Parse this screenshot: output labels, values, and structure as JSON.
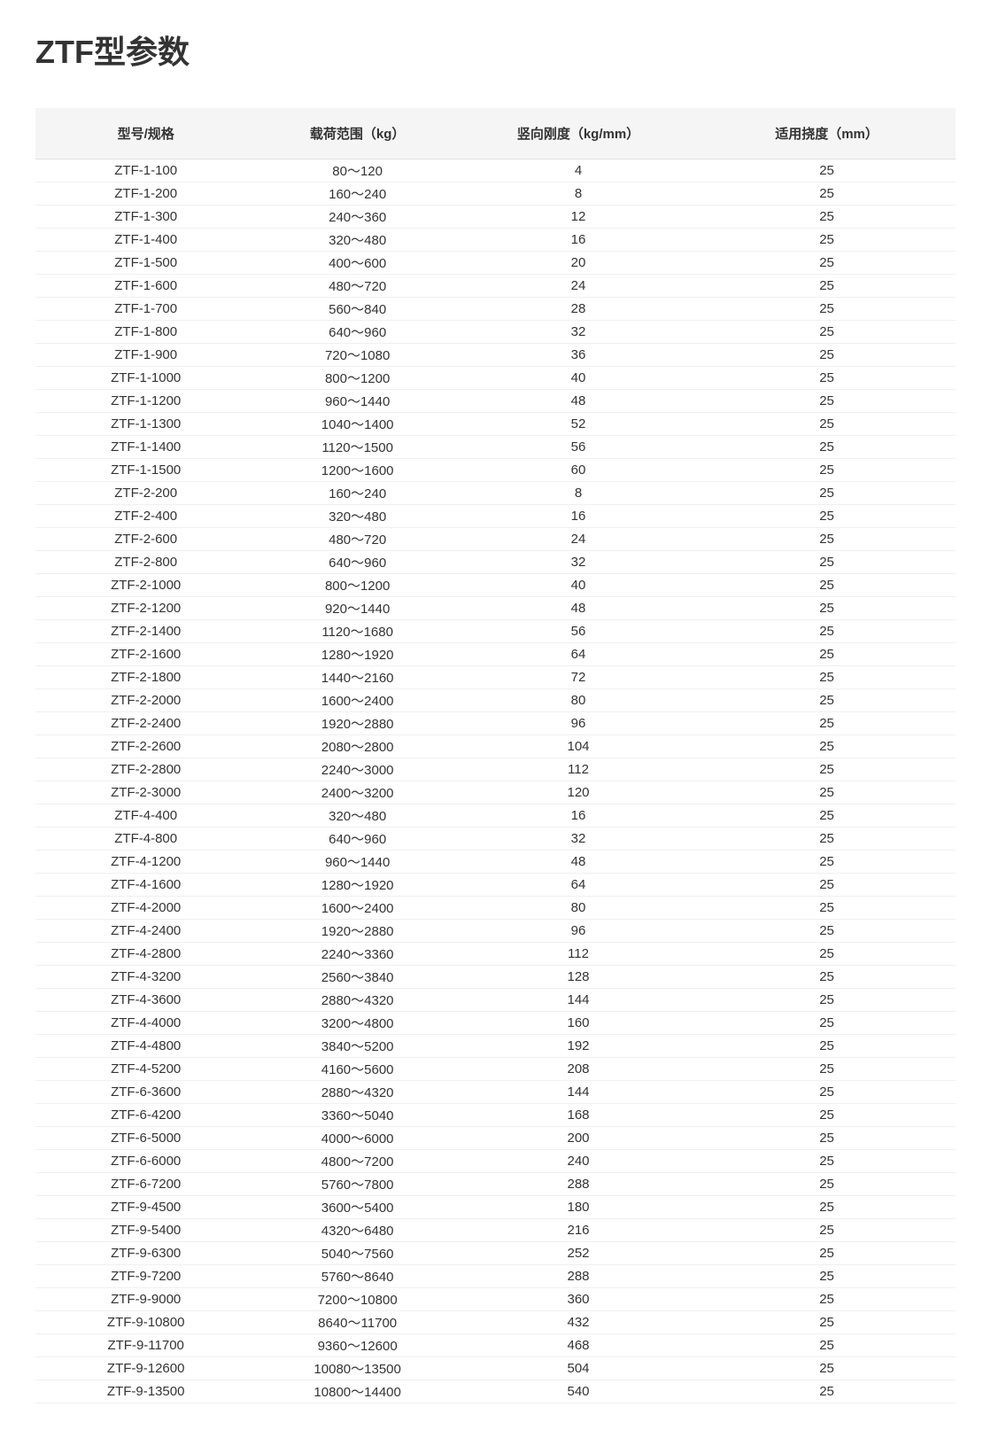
{
  "title": "ZTF型参数",
  "table": {
    "columns": [
      "型号/规格",
      "载荷范围（kg）",
      "竖向刚度（kg/mm）",
      "适用挠度（mm）"
    ],
    "rows": [
      [
        "ZTF-1-100",
        "80～120",
        "4",
        "25"
      ],
      [
        "ZTF-1-200",
        "160～240",
        "8",
        "25"
      ],
      [
        "ZTF-1-300",
        "240～360",
        "12",
        "25"
      ],
      [
        "ZTF-1-400",
        "320～480",
        "16",
        "25"
      ],
      [
        "ZTF-1-500",
        "400～600",
        "20",
        "25"
      ],
      [
        "ZTF-1-600",
        "480～720",
        "24",
        "25"
      ],
      [
        "ZTF-1-700",
        "560～840",
        "28",
        "25"
      ],
      [
        "ZTF-1-800",
        "640～960",
        "32",
        "25"
      ],
      [
        "ZTF-1-900",
        "720～1080",
        "36",
        "25"
      ],
      [
        "ZTF-1-1000",
        "800～1200",
        "40",
        "25"
      ],
      [
        "ZTF-1-1200",
        "960～1440",
        "48",
        "25"
      ],
      [
        "ZTF-1-1300",
        "1040～1400",
        "52",
        "25"
      ],
      [
        "ZTF-1-1400",
        "1120～1500",
        "56",
        "25"
      ],
      [
        "ZTF-1-1500",
        "1200～1600",
        "60",
        "25"
      ],
      [
        "ZTF-2-200",
        "160～240",
        "8",
        "25"
      ],
      [
        "ZTF-2-400",
        "320～480",
        "16",
        "25"
      ],
      [
        "ZTF-2-600",
        "480～720",
        "24",
        "25"
      ],
      [
        "ZTF-2-800",
        "640～960",
        "32",
        "25"
      ],
      [
        "ZTF-2-1000",
        "800～1200",
        "40",
        "25"
      ],
      [
        "ZTF-2-1200",
        "920～1440",
        "48",
        "25"
      ],
      [
        "ZTF-2-1400",
        "1120～1680",
        "56",
        "25"
      ],
      [
        "ZTF-2-1600",
        "1280～1920",
        "64",
        "25"
      ],
      [
        "ZTF-2-1800",
        "1440～2160",
        "72",
        "25"
      ],
      [
        "ZTF-2-2000",
        "1600～2400",
        "80",
        "25"
      ],
      [
        "ZTF-2-2400",
        "1920～2880",
        "96",
        "25"
      ],
      [
        "ZTF-2-2600",
        "2080～2800",
        "104",
        "25"
      ],
      [
        "ZTF-2-2800",
        "2240～3000",
        "112",
        "25"
      ],
      [
        "ZTF-2-3000",
        "2400～3200",
        "120",
        "25"
      ],
      [
        "ZTF-4-400",
        "320～480",
        "16",
        "25"
      ],
      [
        "ZTF-4-800",
        "640～960",
        "32",
        "25"
      ],
      [
        "ZTF-4-1200",
        "960～1440",
        "48",
        "25"
      ],
      [
        "ZTF-4-1600",
        "1280～1920",
        "64",
        "25"
      ],
      [
        "ZTF-4-2000",
        "1600～2400",
        "80",
        "25"
      ],
      [
        "ZTF-4-2400",
        "1920～2880",
        "96",
        "25"
      ],
      [
        "ZTF-4-2800",
        "2240～3360",
        "112",
        "25"
      ],
      [
        "ZTF-4-3200",
        "2560～3840",
        "128",
        "25"
      ],
      [
        "ZTF-4-3600",
        "2880～4320",
        "144",
        "25"
      ],
      [
        "ZTF-4-4000",
        "3200～4800",
        "160",
        "25"
      ],
      [
        "ZTF-4-4800",
        "3840～5200",
        "192",
        "25"
      ],
      [
        "ZTF-4-5200",
        "4160～5600",
        "208",
        "25"
      ],
      [
        "ZTF-6-3600",
        "2880～4320",
        "144",
        "25"
      ],
      [
        "ZTF-6-4200",
        "3360～5040",
        "168",
        "25"
      ],
      [
        "ZTF-6-5000",
        "4000～6000",
        "200",
        "25"
      ],
      [
        "ZTF-6-6000",
        "4800～7200",
        "240",
        "25"
      ],
      [
        "ZTF-6-7200",
        "5760～7800",
        "288",
        "25"
      ],
      [
        "ZTF-9-4500",
        "3600～5400",
        "180",
        "25"
      ],
      [
        "ZTF-9-5400",
        "4320～6480",
        "216",
        "25"
      ],
      [
        "ZTF-9-6300",
        "5040～7560",
        "252",
        "25"
      ],
      [
        "ZTF-9-7200",
        "5760～8640",
        "288",
        "25"
      ],
      [
        "ZTF-9-9000",
        "7200～10800",
        "360",
        "25"
      ],
      [
        "ZTF-9-10800",
        "8640～11700",
        "432",
        "25"
      ],
      [
        "ZTF-9-11700",
        "9360～12600",
        "468",
        "25"
      ],
      [
        "ZTF-9-12600",
        "10080～13500",
        "504",
        "25"
      ],
      [
        "ZTF-9-13500",
        "10800～14400",
        "540",
        "25"
      ]
    ]
  },
  "styling": {
    "background_color": "#ffffff",
    "header_bg": "#f5f5f5",
    "text_color": "#333333",
    "border_color": "#e0e0e0",
    "row_border_color": "#f0f0f0",
    "title_fontsize": 36,
    "header_fontsize": 15,
    "cell_fontsize": 15,
    "column_widths_pct": [
      24,
      22,
      26,
      28
    ]
  }
}
